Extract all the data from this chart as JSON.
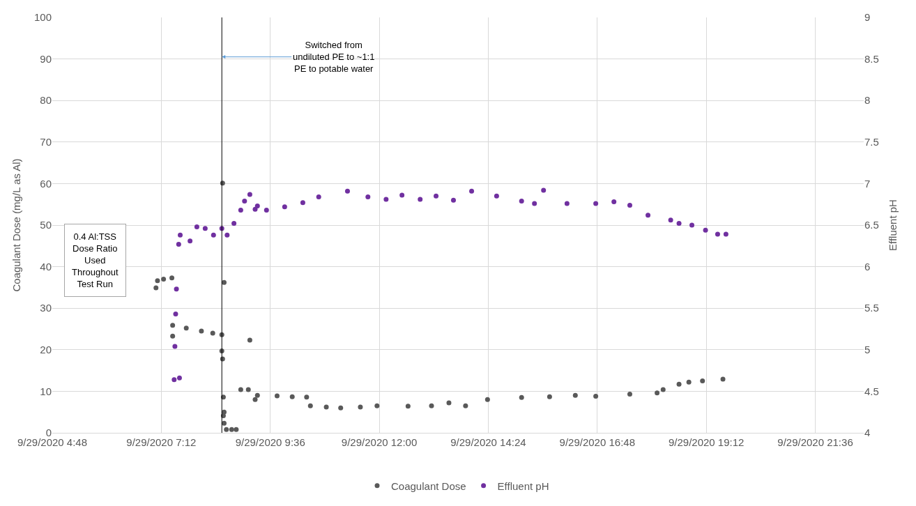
{
  "chart_data": {
    "type": "scatter",
    "ylabel": "Coagulant Dose (mg/L as Al)",
    "y2label": "Effluent pH",
    "xlim": [
      "2020-09-29T04:48",
      "2020-09-29T22:40"
    ],
    "xticks": [
      {
        "value": "2020-09-29T04:48",
        "label": "9/29/2020 4:48"
      },
      {
        "value": "2020-09-29T07:12",
        "label": "9/29/2020 7:12"
      },
      {
        "value": "2020-09-29T09:36",
        "label": "9/29/2020 9:36"
      },
      {
        "value": "2020-09-29T12:00",
        "label": "9/29/2020 12:00"
      },
      {
        "value": "2020-09-29T14:24",
        "label": "9/29/2020 14:24"
      },
      {
        "value": "2020-09-29T16:48",
        "label": "9/29/2020 16:48"
      },
      {
        "value": "2020-09-29T19:12",
        "label": "9/29/2020 19:12"
      },
      {
        "value": "2020-09-29T21:36",
        "label": "9/29/2020 21:36"
      }
    ],
    "ylim": [
      0,
      100
    ],
    "yticks": [
      0,
      10,
      20,
      30,
      40,
      50,
      60,
      70,
      80,
      90,
      100
    ],
    "y2lim": [
      4,
      9
    ],
    "y2ticks": [
      4,
      4.5,
      5,
      5.5,
      6,
      6.5,
      7,
      7.5,
      8,
      8.5,
      9
    ],
    "grid": true,
    "legend": "bottom",
    "marker": "circle",
    "series": [
      {
        "name": "Coagulant Dose",
        "color": "#595959",
        "x": [
          "2020-09-29T07:05",
          "2020-09-29T07:07",
          "2020-09-29T07:15",
          "2020-09-29T07:26",
          "2020-09-29T07:27",
          "2020-09-29T07:27",
          "2020-09-29T07:45",
          "2020-09-29T08:05",
          "2020-09-29T08:20",
          "2020-09-29T08:32",
          "2020-09-29T08:35",
          "2020-09-29T08:32",
          "2020-09-29T08:33",
          "2020-09-29T08:33",
          "2020-09-29T08:34",
          "2020-09-29T08:35",
          "2020-09-29T08:34",
          "2020-09-29T08:35",
          "2020-09-29T08:38",
          "2020-09-29T08:45",
          "2020-09-29T08:51",
          "2020-09-29T08:57",
          "2020-09-29T09:07",
          "2020-09-29T09:09",
          "2020-09-29T09:16",
          "2020-09-29T09:19",
          "2020-09-29T09:45",
          "2020-09-29T10:05",
          "2020-09-29T10:24",
          "2020-09-29T10:29",
          "2020-09-29T10:50",
          "2020-09-29T11:09",
          "2020-09-29T11:35",
          "2020-09-29T11:57",
          "2020-09-29T12:38",
          "2020-09-29T13:09",
          "2020-09-29T13:32",
          "2020-09-29T13:54",
          "2020-09-29T14:23",
          "2020-09-29T15:08",
          "2020-09-29T15:45",
          "2020-09-29T16:19",
          "2020-09-29T16:46",
          "2020-09-29T17:31",
          "2020-09-29T18:07",
          "2020-09-29T18:15",
          "2020-09-29T18:36",
          "2020-09-29T18:49",
          "2020-09-29T19:07",
          "2020-09-29T19:34"
        ],
        "values": [
          34.9,
          36.6,
          37.0,
          37.3,
          25.9,
          23.3,
          25.2,
          24.5,
          24.0,
          23.6,
          36.2,
          19.7,
          17.8,
          60.1,
          8.6,
          5.0,
          4.1,
          2.3,
          0.8,
          0.8,
          0.8,
          10.4,
          10.4,
          22.3,
          8.0,
          9.0,
          8.9,
          8.7,
          8.6,
          6.5,
          6.2,
          6.0,
          6.2,
          6.5,
          6.4,
          6.5,
          7.2,
          6.5,
          8.0,
          8.5,
          8.7,
          9.0,
          8.8,
          9.3,
          9.6,
          10.4,
          11.7,
          12.2,
          12.5,
          12.9
        ]
      },
      {
        "name": "Effluent pH",
        "color": "#7030a0",
        "axis": "y2",
        "x": [
          "2020-09-29T07:32",
          "2020-09-29T07:31",
          "2020-09-29T07:30",
          "2020-09-29T07:29",
          "2020-09-29T07:36",
          "2020-09-29T07:35",
          "2020-09-29T07:37",
          "2020-09-29T07:50",
          "2020-09-29T07:59",
          "2020-09-29T08:10",
          "2020-09-29T08:21",
          "2020-09-29T08:32",
          "2020-09-29T08:39",
          "2020-09-29T08:48",
          "2020-09-29T08:57",
          "2020-09-29T09:02",
          "2020-09-29T09:09",
          "2020-09-29T09:16",
          "2020-09-29T09:19",
          "2020-09-29T09:31",
          "2020-09-29T09:55",
          "2020-09-29T10:19",
          "2020-09-29T10:40",
          "2020-09-29T11:18",
          "2020-09-29T11:45",
          "2020-09-29T12:09",
          "2020-09-29T12:30",
          "2020-09-29T12:54",
          "2020-09-29T13:15",
          "2020-09-29T13:38",
          "2020-09-29T14:02",
          "2020-09-29T14:35",
          "2020-09-29T15:08",
          "2020-09-29T15:25",
          "2020-09-29T15:37",
          "2020-09-29T16:08",
          "2020-09-29T16:46",
          "2020-09-29T17:10",
          "2020-09-29T17:31",
          "2020-09-29T17:55",
          "2020-09-29T18:25",
          "2020-09-29T18:36",
          "2020-09-29T18:53",
          "2020-09-29T19:11",
          "2020-09-29T19:27",
          "2020-09-29T19:38"
        ],
        "values": [
          5.73,
          5.43,
          5.04,
          4.64,
          4.66,
          6.27,
          6.38,
          6.31,
          6.48,
          6.46,
          6.38,
          6.46,
          6.38,
          6.52,
          6.68,
          6.79,
          6.87,
          6.69,
          6.73,
          6.68,
          6.72,
          6.77,
          6.84,
          6.91,
          6.84,
          6.81,
          6.86,
          6.81,
          6.85,
          6.8,
          6.91,
          6.85,
          6.79,
          6.76,
          6.92,
          6.76,
          6.76,
          6.78,
          6.74,
          6.62,
          6.56,
          6.52,
          6.5,
          6.44,
          6.39,
          6.39
        ]
      }
    ],
    "ref_lines": [
      {
        "axis": "x",
        "value": "2020-09-29T08:32",
        "color": "#000000"
      }
    ],
    "annotations": [
      {
        "text": "Switched from\nundiluted PE to ~1:1\nPE to potable water",
        "x": "2020-09-29T08:32",
        "y": 90.5
      },
      "0.4 Al:TSS\nDose Ratio\nUsed\nThroughout\nTest Run"
    ]
  }
}
